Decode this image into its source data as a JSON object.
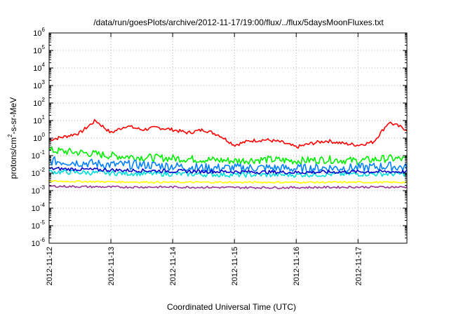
{
  "chart_data": {
    "type": "line",
    "title": "/data/run/goesPlots/archive/2012-11-17/19:00/flux/../flux/5daysMoonFluxes.txt",
    "xlabel": "Coordinated Universal Time (UTC)",
    "ylabel": {
      "base": "protons/cm",
      "sup": "2",
      "rest": "-s-sr-MeV"
    },
    "y_scale": "log",
    "ylim": [
      1e-06,
      1000000.0
    ],
    "y_ticks": [
      {
        "value": 1000000.0,
        "base": "10",
        "exp": "6"
      },
      {
        "value": 100000.0,
        "base": "10",
        "exp": "5"
      },
      {
        "value": 10000.0,
        "base": "10",
        "exp": "4"
      },
      {
        "value": 1000.0,
        "base": "10",
        "exp": "3"
      },
      {
        "value": 100.0,
        "base": "10",
        "exp": "2"
      },
      {
        "value": 10.0,
        "base": "10",
        "exp": "1"
      },
      {
        "value": 1.0,
        "base": "10",
        "exp": "0"
      },
      {
        "value": 0.1,
        "base": "10",
        "exp": "-1"
      },
      {
        "value": 0.01,
        "base": "10",
        "exp": "-2"
      },
      {
        "value": 0.001,
        "base": "10",
        "exp": "-3"
      },
      {
        "value": 0.0001,
        "base": "10",
        "exp": "-4"
      },
      {
        "value": 1e-05,
        "base": "10",
        "exp": "-5"
      },
      {
        "value": 1e-06,
        "base": "10",
        "exp": "-6"
      }
    ],
    "xlim": [
      "2012-11-12",
      "2012-11-17 19:00"
    ],
    "x_ticks": [
      "2012-11-12",
      "2012-11-13",
      "2012-11-14",
      "2012-11-15",
      "2012-11-16",
      "2012-11-17"
    ],
    "grid": true,
    "series": [
      {
        "color": "#ff0000",
        "x": [
          "2012-11-12 00:00",
          "2012-11-12 06:00",
          "2012-11-12 12:00",
          "2012-11-12 18:00",
          "2012-11-13 00:00",
          "2012-11-13 06:00",
          "2012-11-13 12:00",
          "2012-11-13 18:00",
          "2012-11-14 00:00",
          "2012-11-14 06:00",
          "2012-11-14 12:00",
          "2012-11-14 18:00",
          "2012-11-15 00:00",
          "2012-11-15 06:00",
          "2012-11-15 12:00",
          "2012-11-15 18:00",
          "2012-11-16 00:00",
          "2012-11-16 06:00",
          "2012-11-16 12:00",
          "2012-11-16 18:00",
          "2012-11-17 00:00",
          "2012-11-17 06:00",
          "2012-11-17 12:00",
          "2012-11-17 19:00"
        ],
        "y": [
          0.8,
          1.2,
          2.0,
          10,
          2.0,
          5.0,
          3.0,
          4.0,
          3.0,
          2.0,
          3.0,
          1.5,
          0.4,
          0.7,
          0.8,
          0.6,
          0.3,
          0.5,
          0.7,
          0.5,
          0.4,
          0.6,
          8.0,
          3.0
        ]
      },
      {
        "color": "#00ee00",
        "x": [
          "2012-11-12 00:00",
          "2012-11-12 12:00",
          "2012-11-13 00:00",
          "2012-11-13 12:00",
          "2012-11-14 00:00",
          "2012-11-14 12:00",
          "2012-11-15 00:00",
          "2012-11-15 12:00",
          "2012-11-16 00:00",
          "2012-11-16 12:00",
          "2012-11-17 00:00",
          "2012-11-17 12:00",
          "2012-11-17 19:00"
        ],
        "y": [
          0.2,
          0.15,
          0.1,
          0.08,
          0.07,
          0.06,
          0.05,
          0.06,
          0.05,
          0.06,
          0.05,
          0.07,
          0.06
        ]
      },
      {
        "color": "#0080ff",
        "x": [
          "2012-11-12 00:00",
          "2012-11-12 12:00",
          "2012-11-13 00:00",
          "2012-11-13 12:00",
          "2012-11-14 00:00",
          "2012-11-14 12:00",
          "2012-11-15 00:00",
          "2012-11-15 12:00",
          "2012-11-16 00:00",
          "2012-11-16 12:00",
          "2012-11-17 00:00",
          "2012-11-17 12:00",
          "2012-11-17 19:00"
        ],
        "y": [
          0.05,
          0.04,
          0.03,
          0.03,
          0.025,
          0.02,
          0.02,
          0.02,
          0.018,
          0.02,
          0.02,
          0.025,
          0.02
        ]
      },
      {
        "color": "#00dddd",
        "x": [
          "2012-11-12 00:00",
          "2012-11-13 00:00",
          "2012-11-14 00:00",
          "2012-11-15 00:00",
          "2012-11-16 00:00",
          "2012-11-17 00:00",
          "2012-11-17 19:00"
        ],
        "y": [
          0.012,
          0.01,
          0.009,
          0.008,
          0.008,
          0.009,
          0.009
        ]
      },
      {
        "color": "#0000cc",
        "x": [
          "2012-11-12 00:00",
          "2012-11-13 00:00",
          "2012-11-14 00:00",
          "2012-11-15 00:00",
          "2012-11-16 00:00",
          "2012-11-17 00:00",
          "2012-11-17 19:00"
        ],
        "y": [
          0.018,
          0.015,
          0.013,
          0.012,
          0.011,
          0.012,
          0.012
        ]
      },
      {
        "color": "#ffff00",
        "x": [
          "2012-11-12 00:00",
          "2012-11-13 00:00",
          "2012-11-14 00:00",
          "2012-11-15 00:00",
          "2012-11-16 00:00",
          "2012-11-17 00:00",
          "2012-11-17 19:00"
        ],
        "y": [
          0.0035,
          0.0032,
          0.003,
          0.003,
          0.003,
          0.003,
          0.003
        ]
      },
      {
        "color": "#993399",
        "x": [
          "2012-11-12 00:00",
          "2012-11-13 00:00",
          "2012-11-14 00:00",
          "2012-11-15 00:00",
          "2012-11-16 00:00",
          "2012-11-17 00:00",
          "2012-11-17 19:00"
        ],
        "y": [
          0.0018,
          0.0016,
          0.0016,
          0.0015,
          0.0015,
          0.0016,
          0.0016
        ]
      }
    ]
  }
}
